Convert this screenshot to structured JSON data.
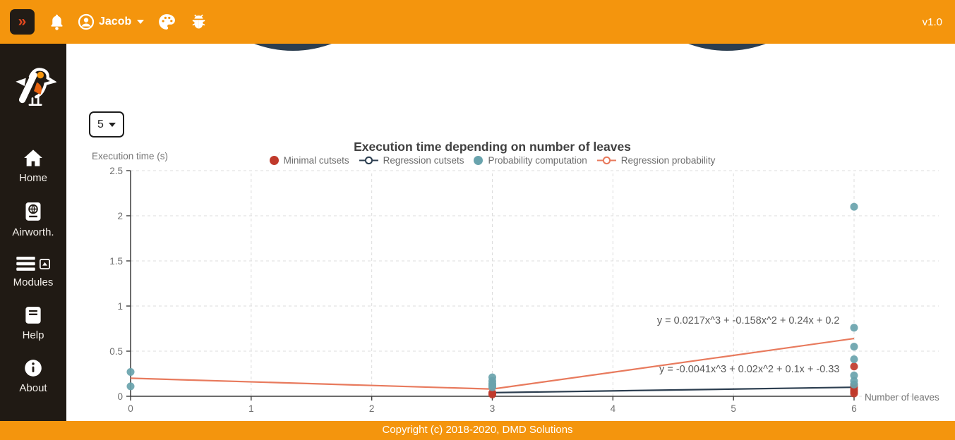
{
  "header": {
    "toggle_label": "»",
    "user_name": "Jacob",
    "version": "v1.0"
  },
  "sidebar": {
    "items": [
      {
        "label": "Home",
        "icon": "home-icon"
      },
      {
        "label": "Airworth.",
        "icon": "passport-globe-icon"
      },
      {
        "label": "Modules",
        "icon": "menu-collapse-icon"
      },
      {
        "label": "Help",
        "icon": "book-icon"
      },
      {
        "label": "About",
        "icon": "info-icon"
      }
    ]
  },
  "content": {
    "leaves_select_value": "5"
  },
  "chart_data": {
    "type": "scatter",
    "title": "Execution time depending on number of leaves",
    "xlabel": "Number of leaves",
    "ylabel": "Execution time (s)",
    "xlim": [
      0,
      6
    ],
    "ylim": [
      0,
      2.5
    ],
    "x_ticks": [
      0,
      1,
      2,
      3,
      4,
      5,
      6
    ],
    "y_ticks": [
      0,
      0.5,
      1,
      1.5,
      2,
      2.5
    ],
    "grid": "dashed",
    "legend_position": "top",
    "series": [
      {
        "name": "Minimal cutsets",
        "type": "scatter",
        "color": "#C0392B",
        "points": [
          [
            3,
            0.04
          ],
          [
            3,
            0.02
          ],
          [
            6,
            0.33
          ],
          [
            6,
            0.13
          ],
          [
            6,
            0.1
          ],
          [
            6,
            0.07
          ],
          [
            6,
            0.05
          ],
          [
            6,
            0.03
          ]
        ]
      },
      {
        "name": "Regression cutsets",
        "type": "line",
        "color": "#2C3E50",
        "points": [
          [
            3,
            0.04
          ],
          [
            6,
            0.1
          ]
        ]
      },
      {
        "name": "Probability computation",
        "type": "scatter",
        "color": "#69A3AD",
        "points": [
          [
            0,
            0.27
          ],
          [
            0,
            0.11
          ],
          [
            3,
            0.21
          ],
          [
            3,
            0.17
          ],
          [
            3,
            0.14
          ],
          [
            3,
            0.12
          ],
          [
            3,
            0.1
          ],
          [
            6,
            2.1
          ],
          [
            6,
            0.76
          ],
          [
            6,
            0.55
          ],
          [
            6,
            0.41
          ],
          [
            6,
            0.23
          ],
          [
            6,
            0.17
          ],
          [
            6,
            0.13
          ]
        ]
      },
      {
        "name": "Regression probability",
        "type": "line",
        "color": "#E87A5D",
        "points": [
          [
            0,
            0.2
          ],
          [
            3,
            0.08
          ],
          [
            6,
            0.64
          ]
        ]
      }
    ],
    "annotations": [
      {
        "text": "y = 0.0217x^3 + -0.158x^2 + 0.24x + 0.2",
        "x": 5.88,
        "y": 0.845,
        "align": "end"
      },
      {
        "text": "y = -0.0041x^3 + 0.02x^2 + 0.1x + -0.33",
        "x": 5.88,
        "y": 0.305,
        "align": "end"
      }
    ]
  },
  "footer": {
    "copyright": "Copyright (c) 2018-2020, DMD Solutions"
  },
  "colors": {
    "brand_orange": "#F4950D",
    "sidebar_dark": "#201A14",
    "toggle_chevron": "#E8491F",
    "axis": "#3C3C3C",
    "grid": "#DCDCDC",
    "annotation_text": "#5A5A5A"
  }
}
